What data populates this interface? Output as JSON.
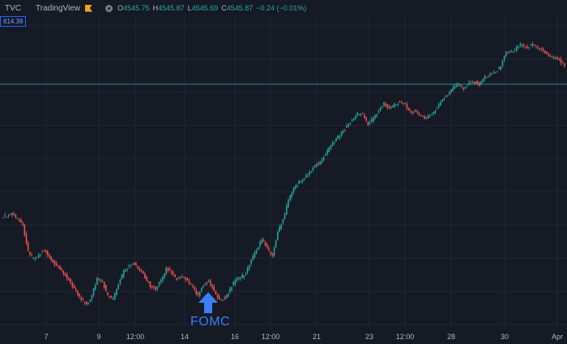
{
  "header": {
    "symbol": "TVC",
    "source": "TradingView",
    "ohlc": {
      "o_label": "O",
      "o_value": "4545.75",
      "h_label": "H",
      "h_value": "4545.87",
      "l_label": "L",
      "l_value": "4545.69",
      "c_label": "C",
      "c_value": "4545.87",
      "change": "−0.24 (−0.01%)"
    }
  },
  "price_badge": "614.39",
  "annotation": {
    "label": "FOMC",
    "icon": "arrow-up-icon"
  },
  "colors": {
    "background": "#161a25",
    "grid": "#232735",
    "up": "#26a69a",
    "down": "#ef5350",
    "annotation": "#3a7ff6",
    "hline": "#2a8f8a"
  },
  "chart_data": {
    "type": "candlestick",
    "x_tick_labels": [
      "7",
      "9",
      "12:00",
      "14",
      "16",
      "12:00",
      "21",
      "23",
      "12:00",
      "28",
      "30",
      "Apr"
    ],
    "grid": true,
    "close": [
      4596,
      4598,
      4592,
      4587,
      4560,
      4553,
      4557,
      4562,
      4556,
      4549,
      4544,
      4538,
      4530,
      4522,
      4514,
      4509,
      4518,
      4534,
      4531,
      4517,
      4514,
      4529,
      4541,
      4547,
      4549,
      4543,
      4536,
      4527,
      4524,
      4532,
      4544,
      4540,
      4534,
      4536,
      4532,
      4526,
      4517,
      4529,
      4532,
      4522,
      4514,
      4515,
      4523,
      4533,
      4535,
      4540,
      4552,
      4562,
      4572,
      4564,
      4556,
      4580,
      4592,
      4611,
      4622,
      4628,
      4633,
      4638,
      4644,
      4648,
      4656,
      4664,
      4671,
      4677,
      4683,
      4689,
      4695,
      4694,
      4685,
      4691,
      4698,
      4705,
      4701,
      4704,
      4707,
      4705,
      4697,
      4698,
      4693,
      4691,
      4695,
      4702,
      4709,
      4714,
      4720,
      4724,
      4720,
      4725,
      4727,
      4724,
      4731,
      4734,
      4736,
      4742,
      4755,
      4756,
      4760,
      4763,
      4760,
      4763,
      4759,
      4757,
      4752,
      4750,
      4749,
      4742
    ]
  }
}
